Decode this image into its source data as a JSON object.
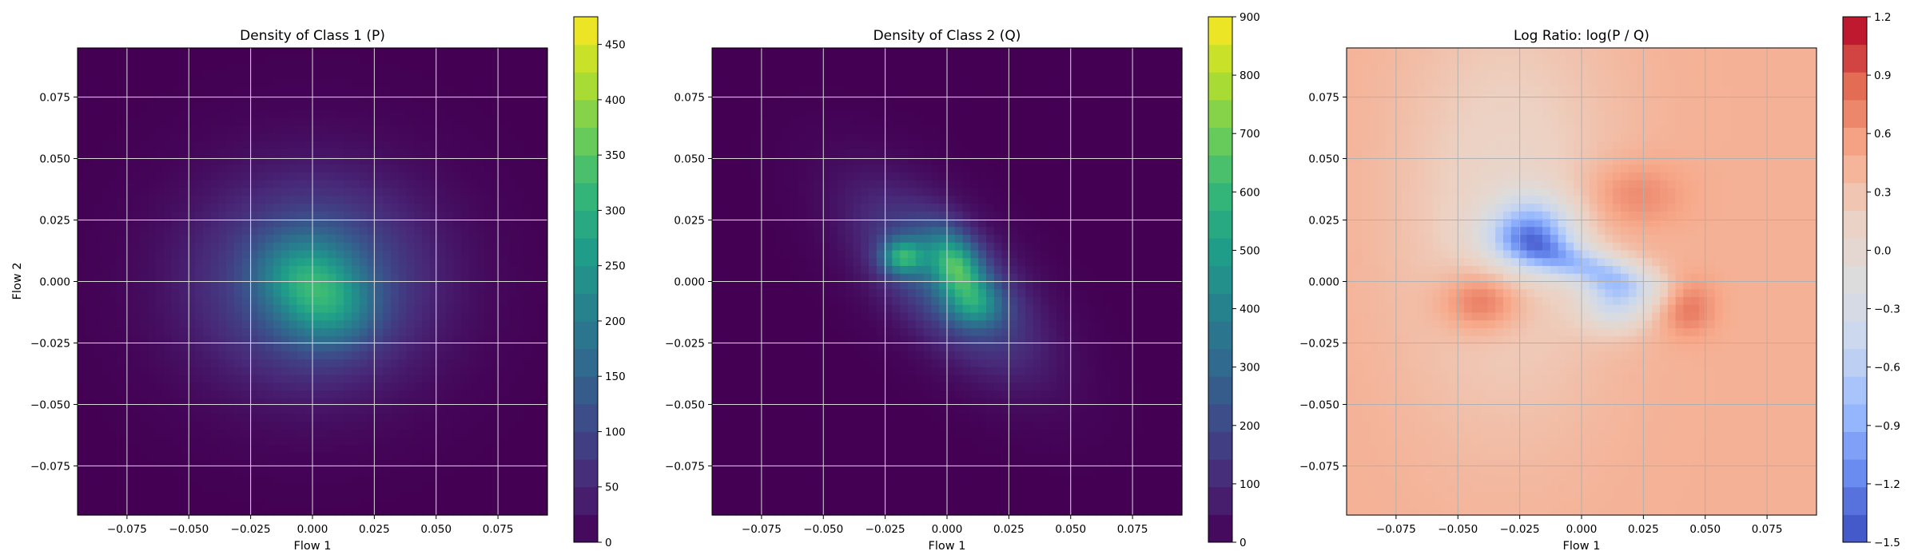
{
  "chart_data": [
    {
      "type": "heatmap",
      "title": "Density of Class 1 (P)",
      "xlabel": "Flow 1",
      "ylabel": "Flow 2",
      "xlim": [
        -0.095,
        0.095
      ],
      "ylim": [
        -0.095,
        0.095
      ],
      "xticks": [
        "−0.075",
        "−0.050",
        "−0.025",
        "0.000",
        "0.025",
        "0.050",
        "0.075"
      ],
      "yticks": [
        "−0.075",
        "−0.050",
        "−0.025",
        "0.000",
        "0.025",
        "0.050",
        "0.075"
      ],
      "grid": true,
      "colormap": "viridis",
      "colorbar": {
        "min": 0,
        "max": 475,
        "ticks": [
          "0",
          "50",
          "100",
          "150",
          "200",
          "250",
          "300",
          "350",
          "400",
          "450"
        ]
      },
      "blobs": [
        {
          "cx": 0.0,
          "cy": 0.0,
          "sx": 0.032,
          "sy": 0.028,
          "rho": 0.0,
          "amp": 150
        },
        {
          "cx": 0.002,
          "cy": -0.004,
          "sx": 0.012,
          "sy": 0.014,
          "rho": 0.0,
          "amp": 150
        },
        {
          "cx": -0.012,
          "cy": 0.004,
          "sx": 0.01,
          "sy": 0.01,
          "rho": 0.0,
          "amp": 50
        },
        {
          "cx": 0.015,
          "cy": -0.012,
          "sx": 0.01,
          "sy": 0.01,
          "rho": 0.0,
          "amp": 50
        }
      ]
    },
    {
      "type": "heatmap",
      "title": "Density of Class 2 (Q)",
      "xlabel": "Flow 1",
      "ylabel": "",
      "xlim": [
        -0.095,
        0.095
      ],
      "ylim": [
        -0.095,
        0.095
      ],
      "xticks": [
        "−0.075",
        "−0.050",
        "−0.025",
        "0.000",
        "0.025",
        "0.050",
        "0.075"
      ],
      "yticks": [
        "−0.075",
        "−0.050",
        "−0.025",
        "0.000",
        "0.025",
        "0.050",
        "0.075"
      ],
      "grid": true,
      "colormap": "viridis",
      "colorbar": {
        "min": 0,
        "max": 900,
        "ticks": [
          "0",
          "100",
          "200",
          "300",
          "400",
          "500",
          "600",
          "700",
          "800",
          "900"
        ]
      },
      "blobs": [
        {
          "cx": 0.0,
          "cy": 0.0,
          "sx": 0.024,
          "sy": 0.024,
          "rho": -0.65,
          "amp": 280
        },
        {
          "cx": -0.018,
          "cy": 0.01,
          "sx": 0.006,
          "sy": 0.005,
          "rho": 0.0,
          "amp": 400
        },
        {
          "cx": 0.004,
          "cy": 0.006,
          "sx": 0.008,
          "sy": 0.01,
          "rho": -0.4,
          "amp": 420
        },
        {
          "cx": 0.012,
          "cy": -0.01,
          "sx": 0.008,
          "sy": 0.006,
          "rho": 0.0,
          "amp": 200
        }
      ]
    },
    {
      "type": "heatmap",
      "title": "Log Ratio: log(P / Q)",
      "xlabel": "Flow 1",
      "ylabel": "",
      "xlim": [
        -0.095,
        0.095
      ],
      "ylim": [
        -0.095,
        0.095
      ],
      "xticks": [
        "−0.075",
        "−0.050",
        "−0.025",
        "0.000",
        "0.025",
        "0.050",
        "0.075"
      ],
      "yticks": [
        "−0.075",
        "−0.050",
        "−0.025",
        "0.000",
        "0.025",
        "0.050",
        "0.075"
      ],
      "grid": true,
      "colormap": "coolwarm",
      "colorbar": {
        "min": -1.5,
        "max": 1.2,
        "ticks": [
          "−1.5",
          "−1.2",
          "−0.9",
          "−0.6",
          "−0.3",
          "0.0",
          "0.3",
          "0.6",
          "0.9",
          "1.2"
        ]
      },
      "base": 0.45,
      "blobs": [
        {
          "cx": -0.03,
          "cy": 0.03,
          "sx": 0.03,
          "sy": 0.06,
          "rho": 0.0,
          "amp": -0.35
        },
        {
          "cx": -0.02,
          "cy": 0.02,
          "sx": 0.012,
          "sy": 0.01,
          "rho": 0.0,
          "amp": -1.2
        },
        {
          "cx": 0.002,
          "cy": 0.006,
          "sx": 0.02,
          "sy": 0.008,
          "rho": -0.7,
          "amp": -0.9
        },
        {
          "cx": 0.014,
          "cy": -0.008,
          "sx": 0.01,
          "sy": 0.008,
          "rho": 0.0,
          "amp": -0.8
        },
        {
          "cx": -0.04,
          "cy": -0.008,
          "sx": 0.012,
          "sy": 0.009,
          "rho": 0.0,
          "amp": 0.55
        },
        {
          "cx": 0.043,
          "cy": -0.01,
          "sx": 0.008,
          "sy": 0.008,
          "rho": 0.0,
          "amp": 0.4
        },
        {
          "cx": 0.02,
          "cy": 0.035,
          "sx": 0.015,
          "sy": 0.01,
          "rho": 0.0,
          "amp": 0.3
        }
      ]
    }
  ]
}
